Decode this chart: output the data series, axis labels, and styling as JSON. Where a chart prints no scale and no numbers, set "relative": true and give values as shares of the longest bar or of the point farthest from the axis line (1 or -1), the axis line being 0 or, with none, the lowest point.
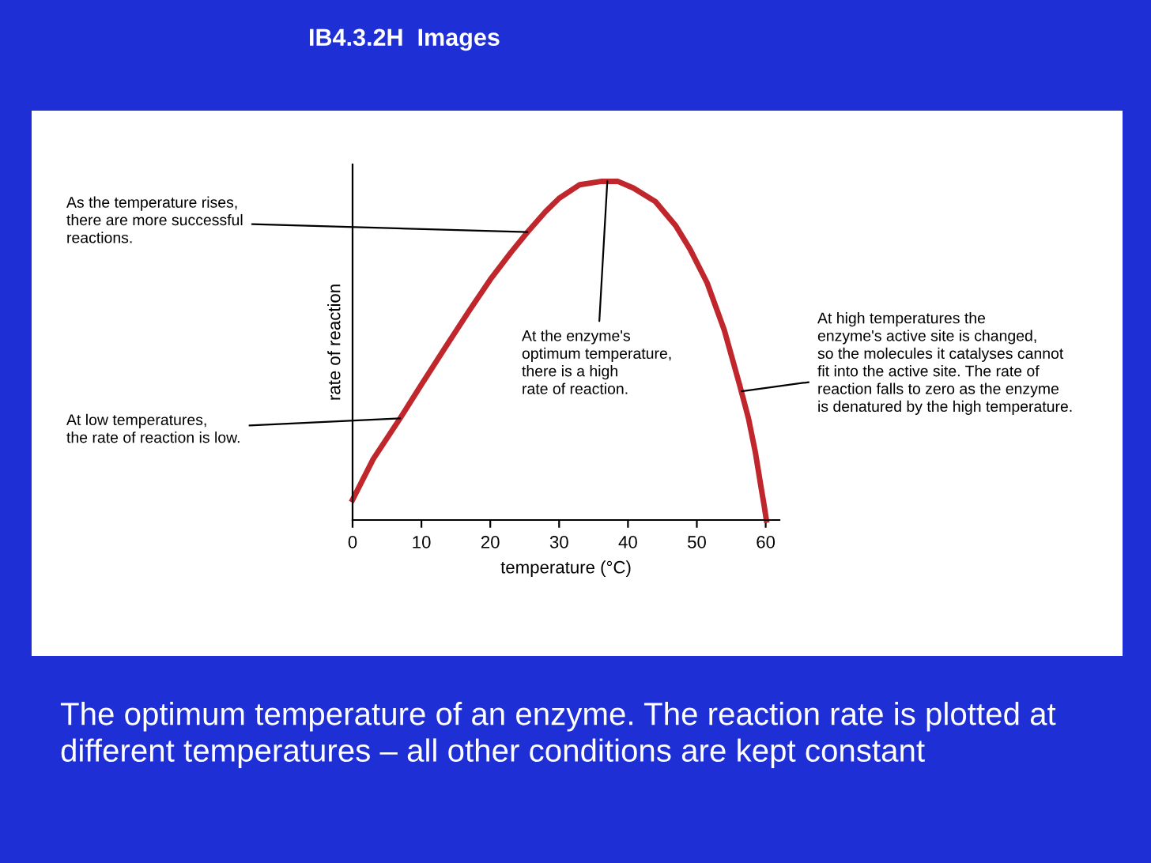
{
  "chart_data": {
    "type": "line",
    "title": "IB4.3.2H  Images",
    "xlabel": "temperature (°C)",
    "ylabel": "rate of reaction",
    "relative": true,
    "xlim": [
      0,
      62
    ],
    "xticks": [
      0,
      10,
      20,
      30,
      40,
      50,
      60
    ],
    "grid": false,
    "marker": "none",
    "line_style": "solid",
    "series": [
      {
        "color": "#c0272d",
        "x": [
          0,
          3,
          6.9,
          10,
          13.8,
          17,
          20,
          23,
          25.4,
          28,
          30,
          33,
          36.2,
          38.5,
          40.8,
          44,
          46.9,
          49,
          51.5,
          54,
          56.2,
          57.5,
          58.5,
          59.3,
          59.8,
          60.1
        ],
        "values": [
          0.06,
          0.18,
          0.3,
          0.4,
          0.52,
          0.62,
          0.71,
          0.79,
          0.85,
          0.91,
          0.95,
          0.99,
          1.0,
          1.0,
          0.98,
          0.94,
          0.87,
          0.8,
          0.7,
          0.56,
          0.4,
          0.3,
          0.2,
          0.1,
          0.04,
          0
        ]
      }
    ],
    "annotations": [
      {
        "text": "As the temperature rises,\nthere are more successful\nreactions.",
        "x": 25.4,
        "y": 0.85
      },
      {
        "text": "At low temperatures,\nthe rate of reaction is low.",
        "x": 6.9,
        "y": 0.3
      },
      {
        "text": "At the enzyme's\noptimum temperature,\nthere is a high\nrate of reaction.",
        "x": 37,
        "y": 1.0
      },
      {
        "text": "At high temperatures the\nenzyme's active site is changed,\nso the molecules it catalyses cannot\nfit into the active site. The rate of\nreaction falls to zero as the enzyme\nis denatured by the high temperature.",
        "x": 56.5,
        "y": 0.38
      },
      "The optimum temperature of an enzyme. The reaction rate is plotted at different temperatures – all other conditions are kept constant"
    ]
  }
}
